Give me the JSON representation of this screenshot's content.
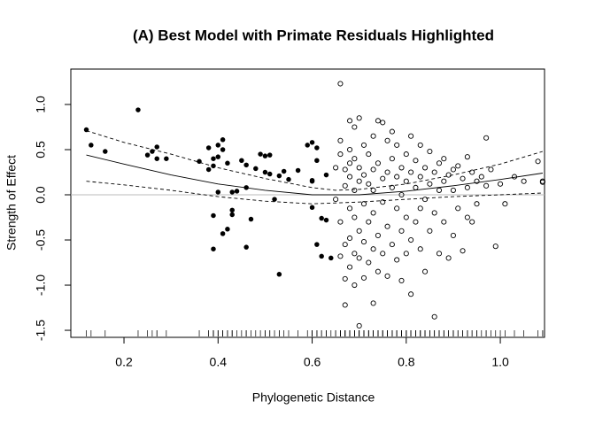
{
  "chart_data": {
    "type": "scatter",
    "title": "(A) Best Model with Primate Residuals Highlighted",
    "x_label": "Phylogenetic Distance",
    "y_label": "Strength of Effect",
    "xlim": [
      0.087,
      1.094
    ],
    "ylim": [
      -1.578,
      1.392
    ],
    "xticks": [
      0.2,
      0.4,
      0.6,
      0.8,
      {
        "value": 1,
        "label": "1.0"
      }
    ],
    "yticks": [
      -1.5,
      {
        "value": -1,
        "label": "-1.0"
      },
      -0.5,
      {
        "value": 0,
        "label": "0.0"
      },
      0.5,
      {
        "value": 1,
        "label": "1.0"
      }
    ],
    "hline": 0,
    "hline_color": "#bbbbbb",
    "rug": true,
    "series": [
      {
        "marker": "filled",
        "color": "#000000",
        "x": [
          0.12,
          0.13,
          0.16,
          0.23,
          0.25,
          0.26,
          0.27,
          0.27,
          0.29,
          0.36,
          0.38,
          0.38,
          0.39,
          0.39,
          0.4,
          0.4,
          0.41,
          0.41,
          0.42,
          0.39,
          0.39,
          0.4,
          0.41,
          0.42,
          0.43,
          0.43,
          0.43,
          0.44,
          0.45,
          0.46,
          0.46,
          0.46,
          0.47,
          0.48,
          0.49,
          0.5,
          0.5,
          0.51,
          0.51,
          0.52,
          0.53,
          0.54,
          0.53,
          0.55,
          0.57,
          0.59,
          0.6,
          0.61,
          0.61,
          0.6,
          0.6,
          0.61,
          0.62,
          0.63,
          0.62,
          0.64,
          0.63,
          0.6
        ],
        "values": [
          0.72,
          0.55,
          0.48,
          0.94,
          0.44,
          0.48,
          0.53,
          0.4,
          0.4,
          0.37,
          0.52,
          0.28,
          0.32,
          0.4,
          0.42,
          0.55,
          0.61,
          0.5,
          0.35,
          -0.23,
          -0.6,
          0.03,
          -0.43,
          -0.38,
          -0.17,
          -0.22,
          0.03,
          0.04,
          0.38,
          0.33,
          0.08,
          -0.58,
          -0.27,
          0.29,
          0.45,
          0.43,
          0.25,
          0.23,
          0.44,
          -0.05,
          0.21,
          0.26,
          -0.88,
          0.17,
          0.27,
          0.55,
          0.58,
          0.52,
          0.38,
          0.16,
          -0.14,
          -0.55,
          -0.26,
          -0.28,
          -0.68,
          -0.7,
          0.22,
          0.15
        ]
      },
      {
        "marker": "open",
        "color": "#000000",
        "x": [
          0.65,
          0.65,
          0.66,
          0.66,
          0.66,
          0.66,
          0.66,
          0.67,
          0.67,
          0.67,
          0.67,
          0.67,
          0.68,
          0.68,
          0.68,
          0.68,
          0.68,
          0.68,
          0.68,
          0.69,
          0.69,
          0.69,
          0.69,
          0.69,
          0.69,
          0.7,
          0.7,
          0.7,
          0.7,
          0.7,
          0.7,
          0.71,
          0.71,
          0.71,
          0.71,
          0.71,
          0.72,
          0.72,
          0.72,
          0.72,
          0.73,
          0.73,
          0.73,
          0.73,
          0.73,
          0.73,
          0.74,
          0.74,
          0.74,
          0.74,
          0.75,
          0.75,
          0.75,
          0.75,
          0.76,
          0.76,
          0.76,
          0.76,
          0.77,
          0.77,
          0.77,
          0.77,
          0.78,
          0.78,
          0.78,
          0.78,
          0.79,
          0.79,
          0.79,
          0.79,
          0.8,
          0.8,
          0.8,
          0.8,
          0.81,
          0.81,
          0.81,
          0.81,
          0.82,
          0.82,
          0.82,
          0.83,
          0.83,
          0.83,
          0.83,
          0.84,
          0.84,
          0.84,
          0.85,
          0.85,
          0.85,
          0.86,
          0.86,
          0.86,
          0.87,
          0.87,
          0.87,
          0.88,
          0.88,
          0.88,
          0.89,
          0.89,
          0.9,
          0.9,
          0.9,
          0.91,
          0.91,
          0.92,
          0.92,
          0.93,
          0.93,
          0.94,
          0.94,
          0.95,
          0.96,
          0.97,
          0.97,
          0.99,
          1.0,
          1.01,
          1.03,
          1.05,
          1.08,
          1.09,
          1.09,
          0.95,
          0.93,
          0.98
        ],
        "values": [
          0.3,
          -0.05,
          1.23,
          0.6,
          0.45,
          -0.3,
          -0.68,
          0.28,
          0.1,
          -0.55,
          -0.93,
          -1.22,
          0.82,
          0.5,
          0.35,
          0.2,
          -0.15,
          -0.48,
          -0.8,
          0.75,
          0.4,
          0.05,
          -0.25,
          -0.65,
          -1.0,
          0.85,
          0.3,
          0.15,
          -0.4,
          -0.7,
          -1.45,
          0.55,
          0.22,
          -0.1,
          -0.52,
          -0.92,
          0.45,
          0.12,
          -0.3,
          -0.75,
          0.65,
          0.28,
          0.05,
          -0.2,
          -0.6,
          -1.2,
          0.82,
          0.35,
          -0.45,
          -0.85,
          0.8,
          0.18,
          -0.08,
          -0.65,
          0.6,
          0.25,
          -0.35,
          -0.9,
          0.7,
          0.4,
          0.08,
          -0.55,
          0.55,
          0.2,
          -0.15,
          -0.72,
          0.3,
          0.0,
          -0.4,
          -0.95,
          0.45,
          0.15,
          -0.25,
          -0.65,
          0.65,
          0.25,
          -0.5,
          -1.1,
          0.38,
          0.08,
          -0.3,
          0.55,
          0.2,
          -0.15,
          -0.6,
          0.3,
          -0.05,
          -0.85,
          0.48,
          0.12,
          -0.4,
          0.25,
          -0.2,
          -1.35,
          0.35,
          0.05,
          -0.65,
          0.4,
          0.15,
          -0.3,
          0.22,
          -0.7,
          0.28,
          0.05,
          -0.45,
          0.32,
          -0.15,
          0.18,
          -0.62,
          0.42,
          0.08,
          0.25,
          -0.3,
          0.15,
          0.2,
          0.63,
          0.1,
          -0.57,
          0.12,
          -0.1,
          0.2,
          0.15,
          0.37,
          0.15,
          0.14,
          -0.1,
          -0.25,
          0.28
        ]
      }
    ],
    "fit_lines": [
      {
        "dash": "none",
        "color": "#000000",
        "x": [
          0.12,
          0.2,
          0.3,
          0.4,
          0.5,
          0.6,
          0.7,
          0.8,
          0.9,
          1.0,
          1.09
        ],
        "values": [
          0.44,
          0.34,
          0.22,
          0.12,
          0.05,
          0.0,
          0.0,
          0.04,
          0.1,
          0.17,
          0.24
        ]
      },
      {
        "dash": "4 3",
        "color": "#000000",
        "x": [
          0.12,
          0.2,
          0.3,
          0.4,
          0.5,
          0.6,
          0.65,
          0.7,
          0.8,
          0.9,
          1.0,
          1.09
        ],
        "values": [
          0.71,
          0.58,
          0.45,
          0.3,
          0.18,
          0.08,
          0.05,
          0.06,
          0.12,
          0.22,
          0.34,
          0.48
        ]
      },
      {
        "dash": "4 3",
        "color": "#000000",
        "x": [
          0.12,
          0.2,
          0.3,
          0.4,
          0.5,
          0.6,
          0.7,
          0.8,
          0.9,
          1.0,
          1.09
        ],
        "values": [
          0.15,
          0.11,
          0.05,
          -0.02,
          -0.07,
          -0.1,
          -0.08,
          -0.05,
          -0.02,
          0.0,
          0.02
        ]
      }
    ]
  }
}
